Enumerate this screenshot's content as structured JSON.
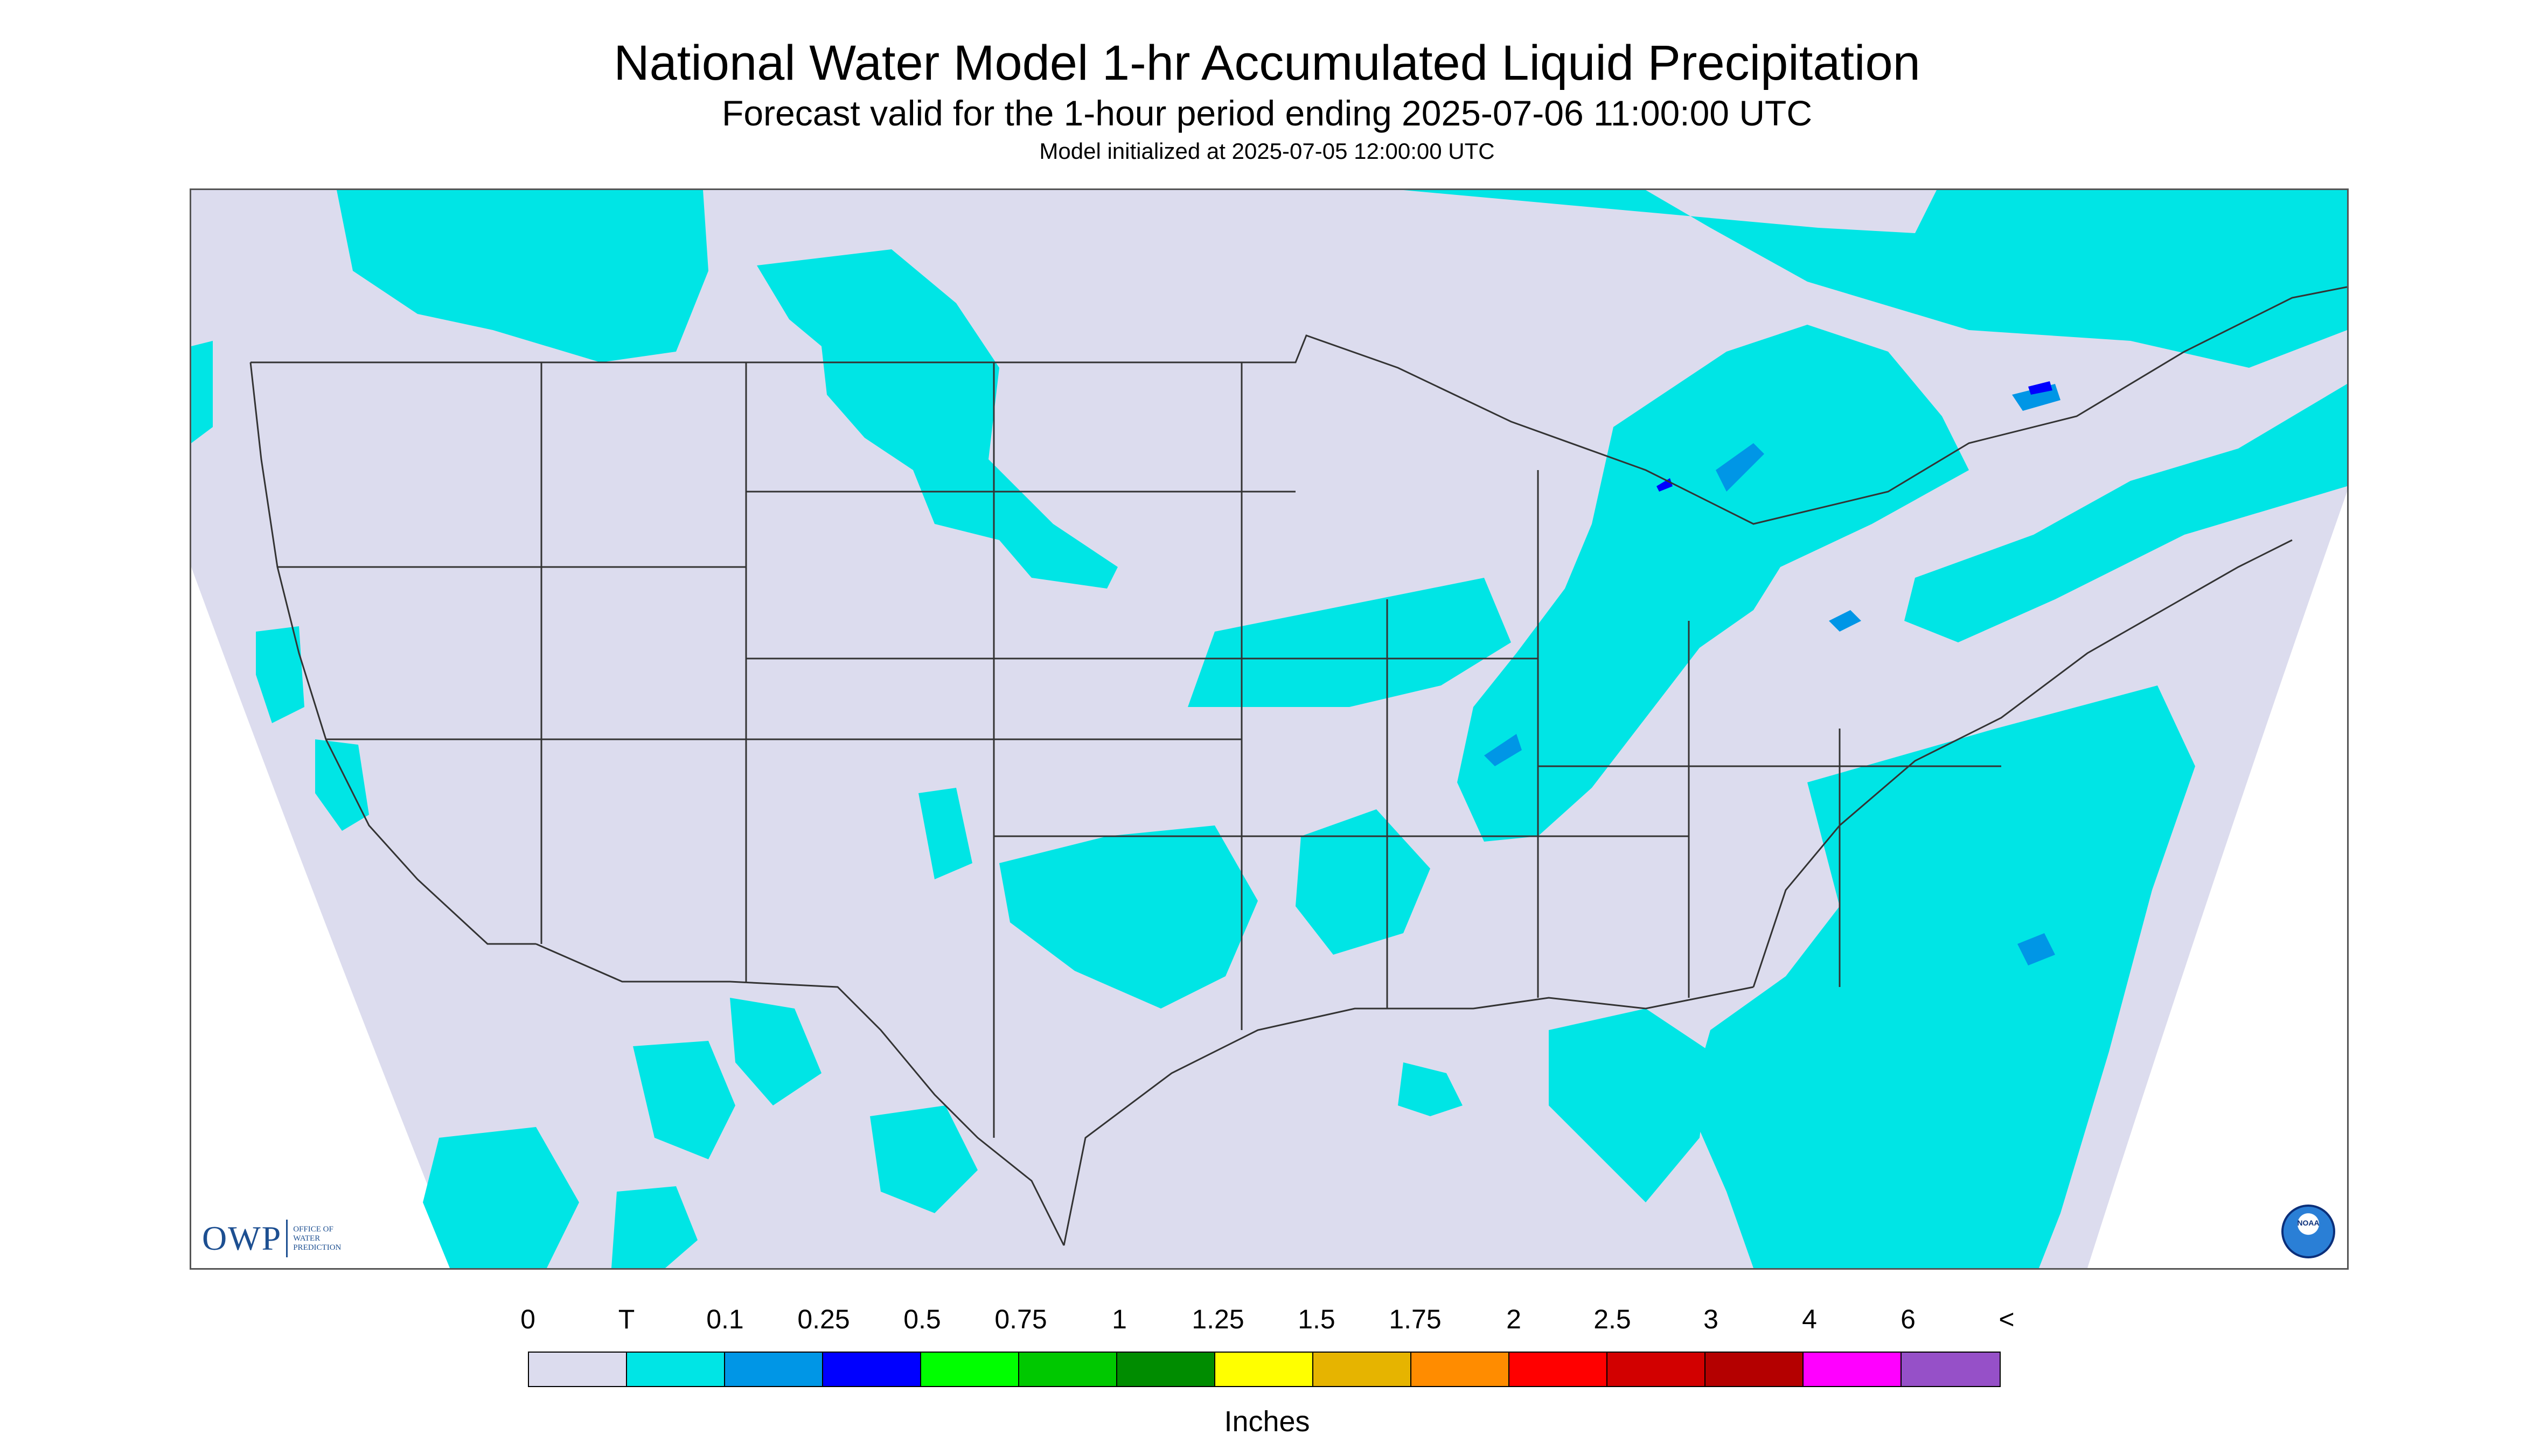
{
  "header": {
    "title": "National Water Model 1-hr Accumulated Liquid Precipitation",
    "subtitle": "Forecast valid for the 1-hour period ending 2025-07-06 11:00:00 UTC",
    "init": "Model initialized at 2025-07-05 12:00:00 UTC"
  },
  "map": {
    "region": "Contiguous United States",
    "projection": "Lambert conformal",
    "background_color": "#dcdcee",
    "precip_colors": {
      "trace": "#00e5e5",
      "light": "#0096e6",
      "moderate": "#0000ff"
    }
  },
  "logos": {
    "owp_word": "OWP",
    "owp_sub": [
      "Office of",
      "Water",
      "Prediction"
    ],
    "noaa_text": "NOAA"
  },
  "legend": {
    "labels": [
      "0",
      "T",
      "0.1",
      "0.25",
      "0.5",
      "0.75",
      "1",
      "1.25",
      "1.5",
      "1.75",
      "2",
      "2.5",
      "3",
      "4",
      "6",
      "<"
    ],
    "colors": [
      "#dcdcee",
      "#00e5e5",
      "#0096e6",
      "#0000ff",
      "#00ff00",
      "#00c800",
      "#008c00",
      "#ffff00",
      "#e6b400",
      "#ff8c00",
      "#ff0000",
      "#d20000",
      "#b40000",
      "#ff00ff",
      "#9650c8"
    ],
    "units": "Inches"
  }
}
